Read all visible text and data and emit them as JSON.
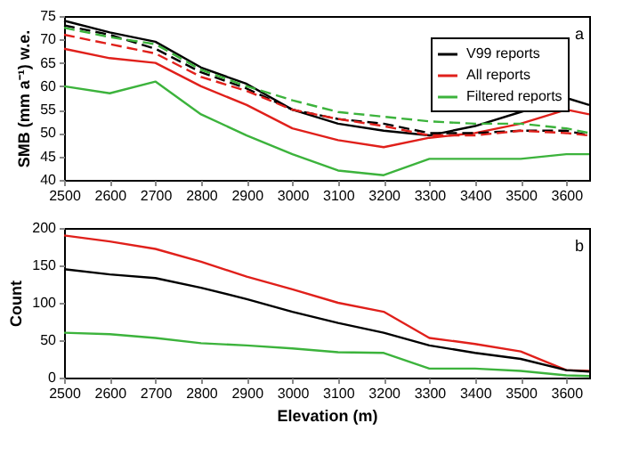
{
  "chart_data": [
    {
      "type": "line",
      "ylabel": "SMB (mm a⁻¹) w.e.",
      "x": [
        2500,
        2600,
        2700,
        2800,
        2900,
        3000,
        3100,
        3200,
        3300,
        3400,
        3500,
        3600,
        3650
      ],
      "xlim": [
        2500,
        3650
      ],
      "xticks": [
        2500,
        2600,
        2700,
        2800,
        2900,
        3000,
        3100,
        3200,
        3300,
        3400,
        3500,
        3600
      ],
      "ylim": [
        40,
        75
      ],
      "yticks": [
        40,
        45,
        50,
        55,
        60,
        65,
        70,
        75
      ],
      "grid": false,
      "legend": "top right",
      "annotations": [
        "a"
      ],
      "series": [
        {
          "name": "V99 reports",
          "color": "#000000",
          "line_style": "solid",
          "values": [
            74,
            71.5,
            69.5,
            64,
            60.5,
            55,
            52,
            50.5,
            49.5,
            51.5,
            54.5,
            57.5,
            56
          ]
        },
        {
          "name": "All reports",
          "color": "#e0201b",
          "line_style": "solid",
          "values": [
            68,
            66,
            65,
            60,
            56,
            51,
            48.5,
            47,
            49,
            50,
            52,
            55,
            54
          ]
        },
        {
          "name": "Filtered reports",
          "color": "#3cb33c",
          "line_style": "solid",
          "values": [
            60,
            58.5,
            61,
            54,
            49.5,
            45.5,
            42,
            41,
            44.5,
            44.5,
            44.5,
            45.5,
            45.5
          ]
        },
        {
          "color": "#000000",
          "line_style": "dashed",
          "values": [
            73,
            71,
            68,
            63,
            59.5,
            55,
            53,
            52,
            50,
            50,
            50.5,
            50.5,
            49.5
          ]
        },
        {
          "color": "#e0201b",
          "line_style": "dashed",
          "values": [
            71,
            69,
            67,
            62,
            59,
            55,
            53,
            51.5,
            49.5,
            49.5,
            50.5,
            50,
            49.5
          ]
        },
        {
          "color": "#3cb33c",
          "line_style": "dashed",
          "values": [
            72.5,
            70.5,
            69,
            63.5,
            60,
            57,
            54.5,
            53.5,
            52.5,
            52,
            52,
            51,
            50
          ]
        }
      ]
    },
    {
      "type": "line",
      "xlabel": "Elevation (m)",
      "ylabel": "Count",
      "x": [
        2500,
        2600,
        2700,
        2800,
        2900,
        3000,
        3100,
        3200,
        3300,
        3400,
        3500,
        3600,
        3650
      ],
      "xlim": [
        2500,
        3650
      ],
      "xticks": [
        2500,
        2600,
        2700,
        2800,
        2900,
        3000,
        3100,
        3200,
        3300,
        3400,
        3500,
        3600
      ],
      "ylim": [
        0,
        200
      ],
      "yticks": [
        0,
        50,
        100,
        150,
        200
      ],
      "grid": false,
      "annotations": [
        "b"
      ],
      "series": [
        {
          "color": "#e0201b",
          "line_style": "solid",
          "values": [
            190,
            182,
            172,
            155,
            135,
            118,
            100,
            88,
            53,
            45,
            35,
            10,
            9
          ]
        },
        {
          "color": "#000000",
          "line_style": "solid",
          "values": [
            145,
            138,
            133,
            120,
            105,
            88,
            73,
            60,
            43,
            33,
            25,
            10,
            8
          ]
        },
        {
          "color": "#3cb33c",
          "line_style": "solid",
          "values": [
            60,
            58,
            53,
            46,
            43,
            39,
            34,
            33,
            12,
            12,
            9,
            3,
            2
          ]
        }
      ]
    }
  ]
}
